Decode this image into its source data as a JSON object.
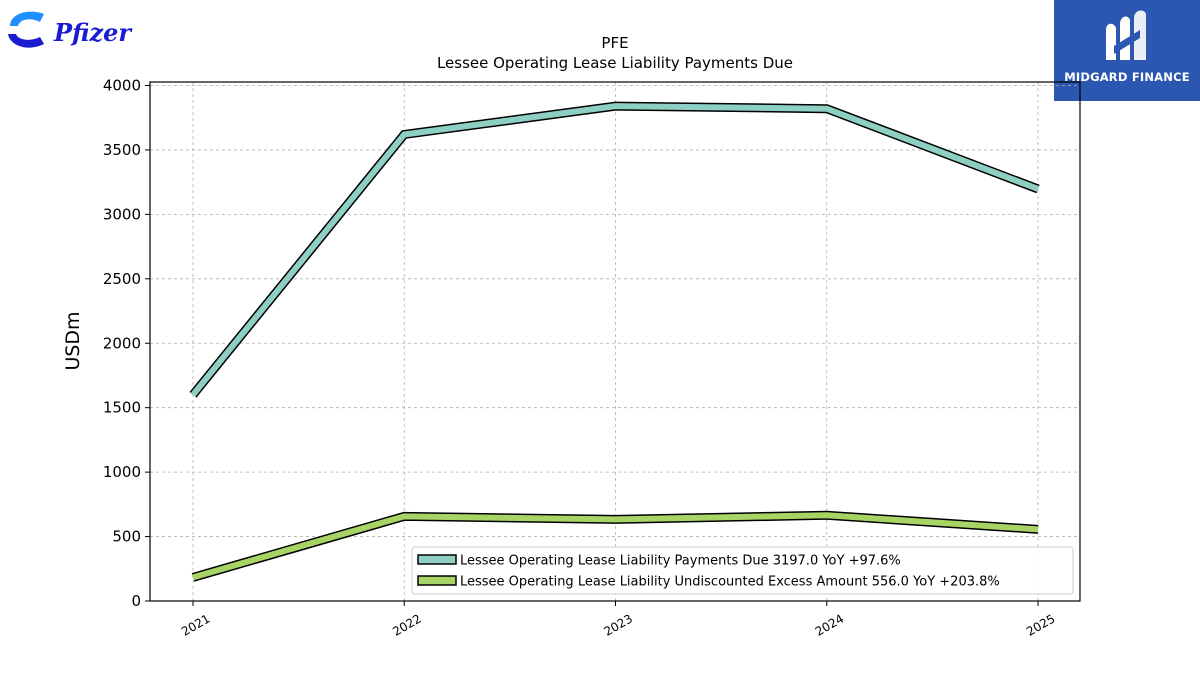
{
  "brand": {
    "company_logo_text": "Pfizer",
    "company_logo_color": "#1b1bd0",
    "company_logo_accent": "#1e90ff",
    "publisher_logo_text": "MIDGARD FINANCE",
    "publisher_bg": "#2b57b0"
  },
  "chart_data": {
    "type": "line",
    "title": "PFE",
    "subtitle": "Lessee Operating Lease Liability Payments Due",
    "xlabel": "",
    "ylabel": "USDm",
    "categories": [
      "2021",
      "2022",
      "2023",
      "2024",
      "2025"
    ],
    "ylim": [
      0,
      4000
    ],
    "yticks": [
      "0",
      "500",
      "1000",
      "1500",
      "2000",
      "2500",
      "3000",
      "3500",
      "4000"
    ],
    "grid": true,
    "legend_position": "bottom-right",
    "series": [
      {
        "name": "Lessee Operating Lease Liability Payments Due",
        "legend_label": "Lessee Operating Lease Liability Payments Due  3197.0 YoY +97.6%",
        "values": [
          1600,
          3620,
          3840,
          3820,
          3197
        ],
        "color": "#8ecfc4"
      },
      {
        "name": "Lessee Operating Lease Liability Undiscounted Excess Amount",
        "legend_label": "Lessee Operating Lease Liability Undiscounted Excess Amount  556.0 YoY +203.8%",
        "values": [
          183,
          657,
          633,
          665,
          556
        ],
        "color": "#a8d466"
      }
    ]
  }
}
